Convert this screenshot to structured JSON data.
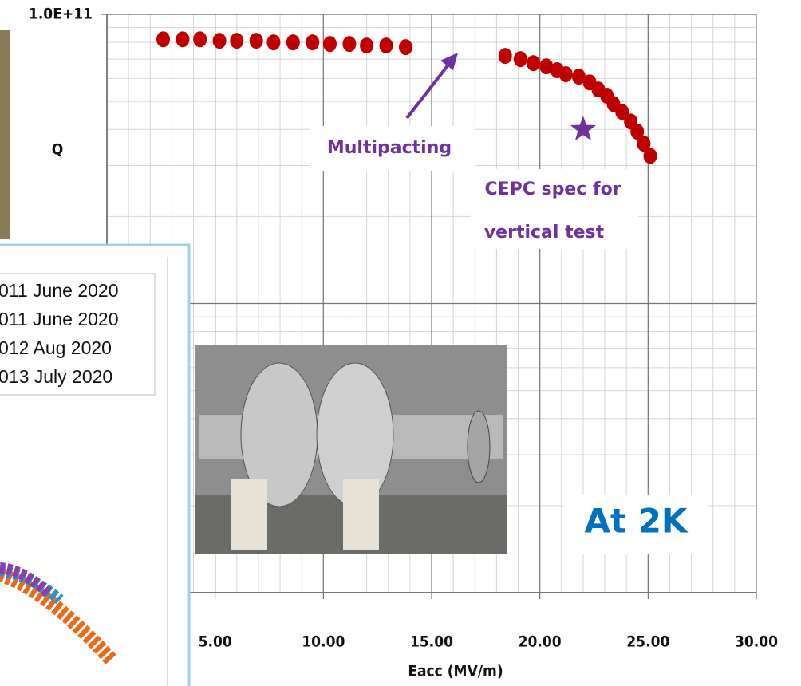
{
  "chart_data": {
    "type": "scatter",
    "y_label": "Q",
    "x_label": "Eacc (MV/m)",
    "xlim": [
      0,
      30
    ],
    "ylim": [
      1000000000,
      100000000000
    ],
    "log_y": true,
    "grid": true,
    "minor_grid": true,
    "xticks": [
      {
        "value": 5,
        "label": "5.00"
      },
      {
        "value": 10,
        "label": "10.00"
      },
      {
        "value": 15,
        "label": "15.00"
      },
      {
        "value": 20,
        "label": "20.00"
      },
      {
        "value": 25,
        "label": "25.00"
      },
      {
        "value": 30,
        "label": "30.00"
      }
    ],
    "yticks": [
      {
        "value": 100000000000,
        "label": "1.0E+11"
      }
    ],
    "series": [
      {
        "color": "#c00000",
        "x": [
          2.6,
          3.5,
          4.3,
          5.2,
          6.0,
          6.9,
          7.7,
          8.6,
          9.5,
          10.3,
          11.2,
          12.0,
          12.9,
          13.8
        ],
        "values": [
          82000000000,
          82000000000,
          82000000000,
          81000000000,
          81000000000,
          81000000000,
          80000000000,
          80000000000,
          80000000000,
          79000000000,
          79000000000,
          78000000000,
          78000000000,
          77000000000
        ]
      },
      {
        "color": "#c00000",
        "x": [
          18.4,
          19.1,
          19.7,
          20.3,
          20.8,
          21.2,
          21.8,
          22.3,
          22.7,
          23.1,
          23.4,
          23.8,
          24.2,
          24.5,
          24.8,
          25.1
        ],
        "values": [
          71800000000,
          70000000000,
          67800000000,
          66100000000,
          64100000000,
          62100000000,
          60900000000,
          58200000000,
          55000000000,
          52300000000,
          49000000000,
          46000000000,
          42600000000,
          39300000000,
          35700000000,
          32400000000
        ]
      }
    ],
    "spec_point": {
      "x": 22,
      "value": 40000000000,
      "color": "#7030a0"
    },
    "annotations": [
      "Multipacting",
      "CEPC spec for",
      "vertical test"
    ],
    "badge": {
      "text": "At 2K",
      "color": "#0070c0"
    },
    "inset_legend": [
      "011 June 2020",
      "011 June 2020",
      "012 Aug 2020",
      "013 July 2020"
    ]
  }
}
